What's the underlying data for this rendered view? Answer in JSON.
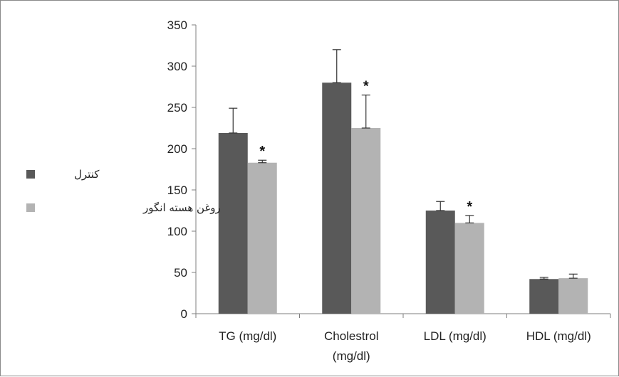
{
  "chart_data": {
    "type": "bar",
    "title": "",
    "xlabel": "",
    "ylabel": "",
    "ylim": [
      0,
      350
    ],
    "yticks": [
      0,
      50,
      100,
      150,
      200,
      250,
      300,
      350
    ],
    "grid": false,
    "legend_position": "left",
    "categories": [
      [
        "TG (mg/dl)"
      ],
      [
        "Cholestrol",
        "(mg/dl)"
      ],
      [
        "LDL (mg/dl)"
      ],
      [
        "HDL (mg/dl)"
      ]
    ],
    "series": [
      {
        "name": "کنترل",
        "color": "#595959",
        "values": [
          219,
          280,
          125,
          42
        ],
        "errors": [
          30,
          40,
          11,
          2
        ],
        "significant": [
          false,
          false,
          false,
          false
        ]
      },
      {
        "name": "روغن هسته انگور",
        "color": "#b3b3b3",
        "values": [
          183,
          225,
          110,
          43
        ],
        "errors": [
          3,
          40,
          9,
          5
        ],
        "significant": [
          true,
          true,
          true,
          false
        ]
      }
    ],
    "significance_marker": "*"
  }
}
